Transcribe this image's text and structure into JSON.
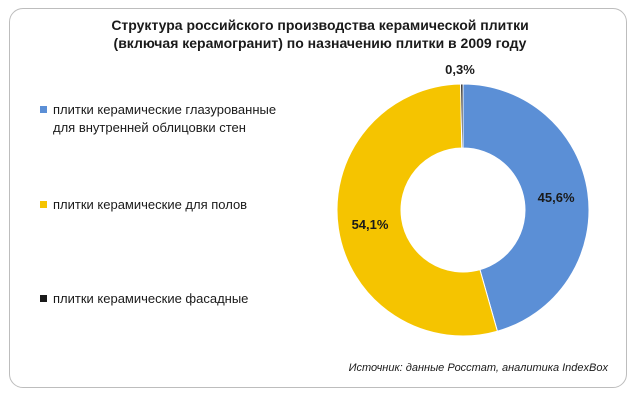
{
  "title_line1": "Структура российского производства керамической плитки",
  "title_line2": "(включая керамогранит) по назначению плитки в 2009 году",
  "source": "Источник: данные Росстат, аналитика IndexBox",
  "chart_data": {
    "type": "pie",
    "variant": "doughnut",
    "title": "Структура российского производства керамической плитки (включая керамогранит) по назначению плитки в 2009 году",
    "unit": "%",
    "categories": [
      "плитки керамические глазурованные для внутренней облицовки стен",
      "плитки керамические для полов",
      "плитки керамические фасадные"
    ],
    "values": [
      45.6,
      54.1,
      0.3
    ],
    "data_labels": [
      "45,6%",
      "54,1%",
      "0,3%"
    ],
    "colors": [
      "#5b8fd6",
      "#f5c400",
      "#1a1a1a"
    ],
    "legend_position": "left"
  },
  "legend": {
    "items": [
      {
        "label": "плитки керамические глазурованные для внутренней облицовки стен",
        "color": "#5b8fd6"
      },
      {
        "label": "плитки керамические для полов",
        "color": "#f5c400"
      },
      {
        "label": "плитки керамические фасадные",
        "color": "#1a1a1a"
      }
    ]
  }
}
